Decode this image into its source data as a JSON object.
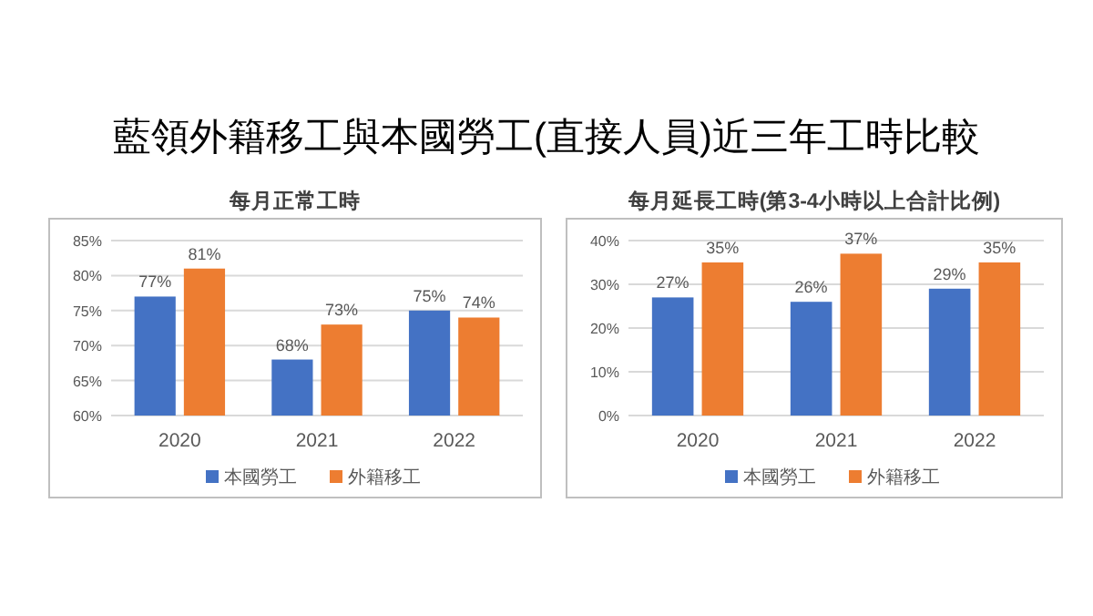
{
  "chart_data": [
    {
      "type": "bar",
      "title": "每月正常工時",
      "annotations": [
        "藍領外籍移工與本國勞工(直接人員)近三年工時比較"
      ],
      "categories": [
        "2020",
        "2021",
        "2022"
      ],
      "series": [
        {
          "name": "本國勞工",
          "color": "#4472c4",
          "values": [
            77,
            68,
            75
          ],
          "value_labels": [
            "77%",
            "68%",
            "75%"
          ]
        },
        {
          "name": "外籍移工",
          "color": "#ed7d31",
          "values": [
            81,
            73,
            74
          ],
          "value_labels": [
            "81%",
            "73%",
            "74%"
          ]
        }
      ],
      "ylim": [
        60,
        85
      ],
      "yticks": [
        {
          "value": 60,
          "label": "60%"
        },
        {
          "value": 65,
          "label": "65%"
        },
        {
          "value": 70,
          "label": "70%"
        },
        {
          "value": 75,
          "label": "75%"
        },
        {
          "value": 80,
          "label": "80%"
        },
        {
          "value": 85,
          "label": "85%"
        }
      ],
      "grid": "y",
      "legend": "bottom"
    },
    {
      "type": "bar",
      "title": "每月延長工時(第3-4小時以上合計比例)",
      "categories": [
        "2020",
        "2021",
        "2022"
      ],
      "series": [
        {
          "name": "本國勞工",
          "color": "#4472c4",
          "values": [
            27,
            26,
            29
          ],
          "value_labels": [
            "27%",
            "26%",
            "29%"
          ]
        },
        {
          "name": "外籍移工",
          "color": "#ed7d31",
          "values": [
            35,
            37,
            35
          ],
          "value_labels": [
            "35%",
            "37%",
            "35%"
          ]
        }
      ],
      "ylim": [
        0,
        40
      ],
      "yticks": [
        {
          "value": 0,
          "label": "0%"
        },
        {
          "value": 10,
          "label": "10%"
        },
        {
          "value": 20,
          "label": "20%"
        },
        {
          "value": 30,
          "label": "30%"
        },
        {
          "value": 40,
          "label": "40%"
        }
      ],
      "grid": "y",
      "legend": "bottom"
    }
  ]
}
